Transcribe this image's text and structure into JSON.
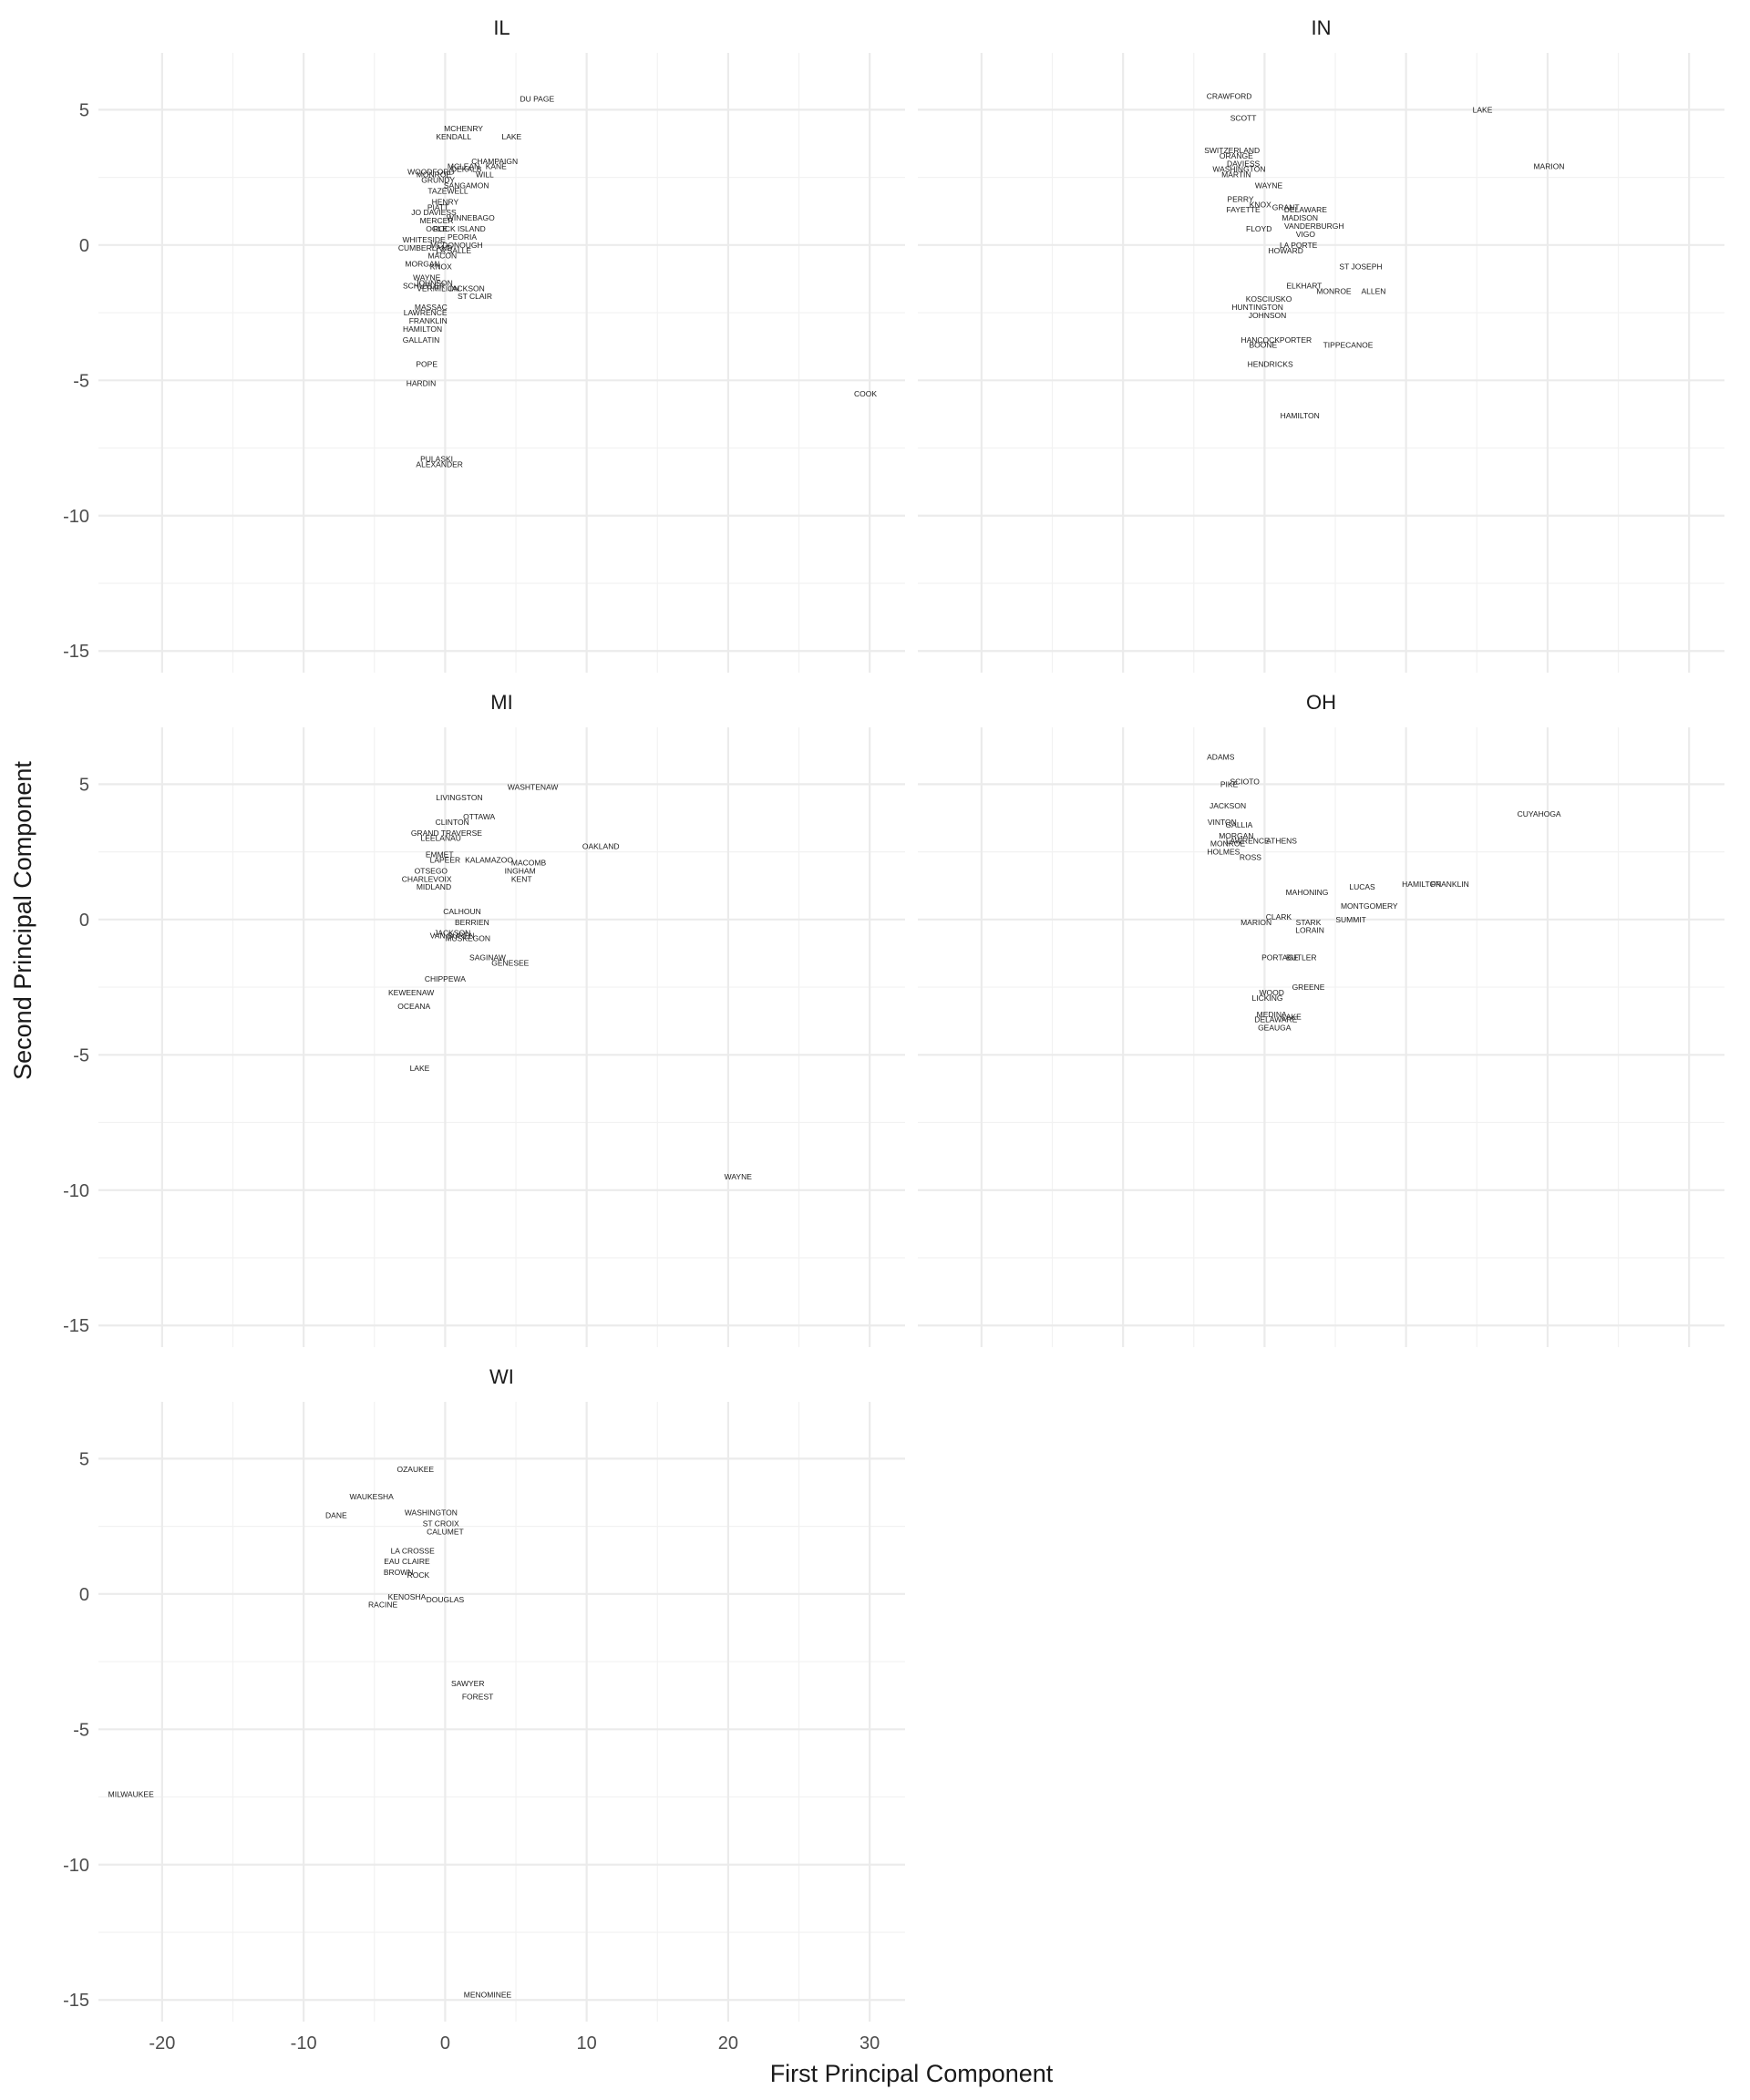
{
  "chart_data": {
    "type": "scatter",
    "xlabel": "First Principal Component",
    "ylabel": "Second Principal Component",
    "xlim": [
      -24.5,
      32.5
    ],
    "ylim": [
      -15.8,
      7.1
    ],
    "x_ticks": [
      -20,
      -10,
      0,
      10,
      20,
      30
    ],
    "y_ticks": [
      5,
      0,
      -5,
      -10,
      -15
    ],
    "grid": true,
    "facets": [
      {
        "name": "IL",
        "points": [
          {
            "label": "DU PAGE",
            "x": 6.5,
            "y": 5.4
          },
          {
            "label": "MCHENRY",
            "x": 1.3,
            "y": 4.3
          },
          {
            "label": "KENDALL",
            "x": 0.6,
            "y": 4.0
          },
          {
            "label": "LAKE",
            "x": 4.7,
            "y": 4.0
          },
          {
            "label": "CHAMPAIGN",
            "x": 3.5,
            "y": 3.1
          },
          {
            "label": "MCLEAN",
            "x": 1.3,
            "y": 2.9
          },
          {
            "label": "KANE",
            "x": 3.6,
            "y": 2.9
          },
          {
            "label": "DEKALB",
            "x": 1.5,
            "y": 2.8
          },
          {
            "label": "WILL",
            "x": 2.8,
            "y": 2.6
          },
          {
            "label": "WOODFORD",
            "x": -1.0,
            "y": 2.7
          },
          {
            "label": "MONROE",
            "x": -0.8,
            "y": 2.6
          },
          {
            "label": "GRUNDY",
            "x": -0.5,
            "y": 2.4
          },
          {
            "label": "SANGAMON",
            "x": 1.5,
            "y": 2.2
          },
          {
            "label": "TAZEWELL",
            "x": 0.2,
            "y": 2.0
          },
          {
            "label": "HENRY",
            "x": 0.0,
            "y": 1.6
          },
          {
            "label": "PIATT",
            "x": -0.5,
            "y": 1.4
          },
          {
            "label": "JO DAVIESS",
            "x": -0.8,
            "y": 1.2
          },
          {
            "label": "WINNEBAGO",
            "x": 1.8,
            "y": 1.0
          },
          {
            "label": "MERCER",
            "x": -0.6,
            "y": 0.9
          },
          {
            "label": "ROCK ISLAND",
            "x": 1.0,
            "y": 0.6
          },
          {
            "label": "OGLE",
            "x": -0.6,
            "y": 0.6
          },
          {
            "label": "PEORIA",
            "x": 1.2,
            "y": 0.3
          },
          {
            "label": "WHITESIDE",
            "x": -1.5,
            "y": 0.2
          },
          {
            "label": "MCDONOUGH",
            "x": 0.8,
            "y": 0.0
          },
          {
            "label": "CUMBERLAND",
            "x": -1.4,
            "y": -0.1
          },
          {
            "label": "LA SALLE",
            "x": 0.6,
            "y": -0.2
          },
          {
            "label": "MACON",
            "x": -0.2,
            "y": -0.4
          },
          {
            "label": "MORGAN",
            "x": -1.6,
            "y": -0.7
          },
          {
            "label": "KNOX",
            "x": -0.3,
            "y": -0.8
          },
          {
            "label": "WAYNE",
            "x": -1.3,
            "y": -1.2
          },
          {
            "label": "JOHNSON",
            "x": -0.8,
            "y": -1.4
          },
          {
            "label": "SCHUYLER",
            "x": -1.5,
            "y": -1.5
          },
          {
            "label": "VERMILION",
            "x": -0.5,
            "y": -1.6
          },
          {
            "label": "JACKSON",
            "x": 1.5,
            "y": -1.6
          },
          {
            "label": "ST CLAIR",
            "x": 2.1,
            "y": -1.9
          },
          {
            "label": "MASSAC",
            "x": -1.0,
            "y": -2.3
          },
          {
            "label": "LAWRENCE",
            "x": -1.4,
            "y": -2.5
          },
          {
            "label": "FRANKLIN",
            "x": -1.2,
            "y": -2.8
          },
          {
            "label": "HAMILTON",
            "x": -1.6,
            "y": -3.1
          },
          {
            "label": "GALLATIN",
            "x": -1.7,
            "y": -3.5
          },
          {
            "label": "POPE",
            "x": -1.3,
            "y": -4.4
          },
          {
            "label": "HARDIN",
            "x": -1.7,
            "y": -5.1
          },
          {
            "label": "COOK",
            "x": 29.7,
            "y": -5.5
          },
          {
            "label": "PULASKI",
            "x": -0.6,
            "y": -7.9
          },
          {
            "label": "ALEXANDER",
            "x": -0.4,
            "y": -8.1
          }
        ]
      },
      {
        "name": "IN",
        "points": [
          {
            "label": "CRAWFORD",
            "x": -2.5,
            "y": 5.5
          },
          {
            "label": "LAKE",
            "x": 15.4,
            "y": 5.0
          },
          {
            "label": "SCOTT",
            "x": -1.5,
            "y": 4.7
          },
          {
            "label": "SWITZERLAND",
            "x": -2.3,
            "y": 3.5
          },
          {
            "label": "ORANGE",
            "x": -2.0,
            "y": 3.3
          },
          {
            "label": "DAVIESS",
            "x": -1.5,
            "y": 3.0
          },
          {
            "label": "WASHINGTON",
            "x": -1.8,
            "y": 2.8
          },
          {
            "label": "MARION",
            "x": 20.1,
            "y": 2.9
          },
          {
            "label": "MARTIN",
            "x": -2.0,
            "y": 2.6
          },
          {
            "label": "WAYNE",
            "x": 0.3,
            "y": 2.2
          },
          {
            "label": "PERRY",
            "x": -1.7,
            "y": 1.7
          },
          {
            "label": "KNOX",
            "x": -0.3,
            "y": 1.5
          },
          {
            "label": "GRANT",
            "x": 1.5,
            "y": 1.4
          },
          {
            "label": "DELAWARE",
            "x": 2.9,
            "y": 1.3
          },
          {
            "label": "FAYETTE",
            "x": -1.5,
            "y": 1.3
          },
          {
            "label": "MADISON",
            "x": 2.5,
            "y": 1.0
          },
          {
            "label": "VANDERBURGH",
            "x": 3.5,
            "y": 0.7
          },
          {
            "label": "VIGO",
            "x": 2.9,
            "y": 0.4
          },
          {
            "label": "FLOYD",
            "x": -0.4,
            "y": 0.6
          },
          {
            "label": "LA PORTE",
            "x": 2.4,
            "y": 0.0
          },
          {
            "label": "HOWARD",
            "x": 1.5,
            "y": -0.2
          },
          {
            "label": "ST JOSEPH",
            "x": 6.8,
            "y": -0.8
          },
          {
            "label": "ELKHART",
            "x": 2.8,
            "y": -1.5
          },
          {
            "label": "MONROE",
            "x": 4.9,
            "y": -1.7
          },
          {
            "label": "ALLEN",
            "x": 7.7,
            "y": -1.7
          },
          {
            "label": "KOSCIUSKO",
            "x": 0.3,
            "y": -2.0
          },
          {
            "label": "HUNTINGTON",
            "x": -0.5,
            "y": -2.3
          },
          {
            "label": "JOHNSON",
            "x": 0.2,
            "y": -2.6
          },
          {
            "label": "HANCOCK",
            "x": -0.3,
            "y": -3.5
          },
          {
            "label": "PORTER",
            "x": 2.2,
            "y": -3.5
          },
          {
            "label": "BOONE",
            "x": -0.1,
            "y": -3.7
          },
          {
            "label": "TIPPECANOE",
            "x": 5.9,
            "y": -3.7
          },
          {
            "label": "HENDRICKS",
            "x": 0.4,
            "y": -4.4
          },
          {
            "label": "HAMILTON",
            "x": 2.5,
            "y": -6.3
          }
        ]
      },
      {
        "name": "MI",
        "points": [
          {
            "label": "WASHTENAW",
            "x": 6.2,
            "y": 4.9
          },
          {
            "label": "LIVINGSTON",
            "x": 1.0,
            "y": 4.5
          },
          {
            "label": "OTTAWA",
            "x": 2.4,
            "y": 3.8
          },
          {
            "label": "CLINTON",
            "x": 0.5,
            "y": 3.6
          },
          {
            "label": "GRAND TRAVERSE",
            "x": 0.1,
            "y": 3.2
          },
          {
            "label": "LEELANAU",
            "x": -0.3,
            "y": 3.0
          },
          {
            "label": "OAKLAND",
            "x": 11.0,
            "y": 2.7
          },
          {
            "label": "EMMET",
            "x": -0.4,
            "y": 2.4
          },
          {
            "label": "LAPEER",
            "x": 0.0,
            "y": 2.2
          },
          {
            "label": "KALAMAZOO",
            "x": 3.1,
            "y": 2.2
          },
          {
            "label": "MACOMB",
            "x": 5.9,
            "y": 2.1
          },
          {
            "label": "INGHAM",
            "x": 5.3,
            "y": 1.8
          },
          {
            "label": "KENT",
            "x": 5.4,
            "y": 1.5
          },
          {
            "label": "OTSEGO",
            "x": -1.0,
            "y": 1.8
          },
          {
            "label": "CHARLEVOIX",
            "x": -1.3,
            "y": 1.5
          },
          {
            "label": "MIDLAND",
            "x": -0.8,
            "y": 1.2
          },
          {
            "label": "CALHOUN",
            "x": 1.2,
            "y": 0.3
          },
          {
            "label": "BERRIEN",
            "x": 1.9,
            "y": -0.1
          },
          {
            "label": "MUSKEGON",
            "x": 1.6,
            "y": -0.7
          },
          {
            "label": "SAGINAW",
            "x": 3.0,
            "y": -1.4
          },
          {
            "label": "GENESEE",
            "x": 4.6,
            "y": -1.6
          },
          {
            "label": "JACKSON",
            "x": 0.5,
            "y": -0.5
          },
          {
            "label": "VAN BUREN",
            "x": 0.5,
            "y": -0.6
          },
          {
            "label": "CHIPPEWA",
            "x": 0.0,
            "y": -2.2
          },
          {
            "label": "KEWEENAW",
            "x": -2.4,
            "y": -2.7
          },
          {
            "label": "OCEANA",
            "x": -2.2,
            "y": -3.2
          },
          {
            "label": "LAKE",
            "x": -1.8,
            "y": -5.5
          },
          {
            "label": "WAYNE",
            "x": 20.7,
            "y": -9.5
          }
        ]
      },
      {
        "name": "OH",
        "points": [
          {
            "label": "ADAMS",
            "x": -3.1,
            "y": 6.0
          },
          {
            "label": "SCIOTO",
            "x": -1.4,
            "y": 5.1
          },
          {
            "label": "PIKE",
            "x": -2.5,
            "y": 5.0
          },
          {
            "label": "JACKSON",
            "x": -2.6,
            "y": 4.2
          },
          {
            "label": "VINTON",
            "x": -3.0,
            "y": 3.6
          },
          {
            "label": "GALLIA",
            "x": -1.8,
            "y": 3.5
          },
          {
            "label": "MORGAN",
            "x": -2.0,
            "y": 3.1
          },
          {
            "label": "LAWRENCE",
            "x": -1.2,
            "y": 2.9
          },
          {
            "label": "ATHENS",
            "x": 1.2,
            "y": 2.9
          },
          {
            "label": "MONROE",
            "x": -2.6,
            "y": 2.8
          },
          {
            "label": "HOLMES",
            "x": -2.9,
            "y": 2.5
          },
          {
            "label": "ROSS",
            "x": -1.0,
            "y": 2.3
          },
          {
            "label": "CUYAHOGA",
            "x": 19.4,
            "y": 3.9
          },
          {
            "label": "LUCAS",
            "x": 6.9,
            "y": 1.2
          },
          {
            "label": "HAMILTON",
            "x": 11.1,
            "y": 1.3
          },
          {
            "label": "FRANKLIN",
            "x": 13.1,
            "y": 1.3
          },
          {
            "label": "MAHONING",
            "x": 3.0,
            "y": 1.0
          },
          {
            "label": "MONTGOMERY",
            "x": 7.4,
            "y": 0.5
          },
          {
            "label": "SUMMIT",
            "x": 6.1,
            "y": 0.0
          },
          {
            "label": "STARK",
            "x": 3.1,
            "y": -0.1
          },
          {
            "label": "LORAIN",
            "x": 3.2,
            "y": -0.4
          },
          {
            "label": "CLARK",
            "x": 1.0,
            "y": 0.1
          },
          {
            "label": "MARION",
            "x": -0.6,
            "y": -0.1
          },
          {
            "label": "BUTLER",
            "x": 2.6,
            "y": -1.4
          },
          {
            "label": "PORTAGE",
            "x": 1.1,
            "y": -1.4
          },
          {
            "label": "GREENE",
            "x": 3.1,
            "y": -2.5
          },
          {
            "label": "WOOD",
            "x": 0.5,
            "y": -2.7
          },
          {
            "label": "LICKING",
            "x": 0.2,
            "y": -2.9
          },
          {
            "label": "LAKE",
            "x": 1.9,
            "y": -3.6
          },
          {
            "label": "MEDINA",
            "x": 0.5,
            "y": -3.5
          },
          {
            "label": "DELAWARE",
            "x": 0.8,
            "y": -3.7
          },
          {
            "label": "GEAUGA",
            "x": 0.7,
            "y": -4.0
          }
        ]
      },
      {
        "name": "WI",
        "points": [
          {
            "label": "OZAUKEE",
            "x": -2.1,
            "y": 4.6
          },
          {
            "label": "WAUKESHA",
            "x": -5.2,
            "y": 3.6
          },
          {
            "label": "WASHINGTON",
            "x": -1.0,
            "y": 3.0
          },
          {
            "label": "DANE",
            "x": -7.7,
            "y": 2.9
          },
          {
            "label": "ST CROIX",
            "x": -0.3,
            "y": 2.6
          },
          {
            "label": "CALUMET",
            "x": 0.0,
            "y": 2.3
          },
          {
            "label": "LA CROSSE",
            "x": -2.3,
            "y": 1.6
          },
          {
            "label": "EAU CLAIRE",
            "x": -2.7,
            "y": 1.2
          },
          {
            "label": "BROWN",
            "x": -3.3,
            "y": 0.8
          },
          {
            "label": "ROCK",
            "x": -1.9,
            "y": 0.7
          },
          {
            "label": "KENOSHA",
            "x": -2.7,
            "y": -0.1
          },
          {
            "label": "DOUGLAS",
            "x": 0.0,
            "y": -0.2
          },
          {
            "label": "RACINE",
            "x": -4.4,
            "y": -0.4
          },
          {
            "label": "SAWYER",
            "x": 1.6,
            "y": -3.3
          },
          {
            "label": "FOREST",
            "x": 2.3,
            "y": -3.8
          },
          {
            "label": "MILWAUKEE",
            "x": -22.2,
            "y": -7.4
          },
          {
            "label": "MENOMINEE",
            "x": 3.0,
            "y": -14.8
          }
        ]
      }
    ]
  }
}
